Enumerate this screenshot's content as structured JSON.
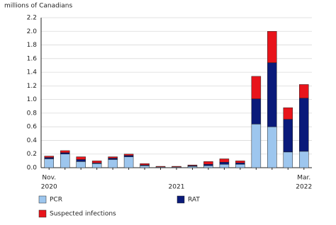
{
  "chart_data": {
    "type": "stacked_bar",
    "y_label": "millions of Canadians",
    "categories": [
      "Nov.",
      null,
      null,
      null,
      null,
      null,
      null,
      null,
      null,
      null,
      null,
      null,
      null,
      null,
      null,
      null,
      "Mar."
    ],
    "years": [
      "2020",
      null,
      null,
      null,
      null,
      null,
      null,
      null,
      "2021",
      null,
      null,
      null,
      null,
      null,
      null,
      null,
      "2022"
    ],
    "series": [
      {
        "name": "PCR",
        "color": "#9dc6ee",
        "values": [
          0.13,
          0.2,
          0.09,
          0.06,
          0.12,
          0.16,
          0.03,
          0.01,
          0.01,
          0.02,
          0.03,
          0.05,
          0.05,
          0.64,
          0.6,
          0.23,
          0.24
        ]
      },
      {
        "name": "RAT",
        "color": "#0a1a7a",
        "values": [
          0.02,
          0.02,
          0.03,
          0.01,
          0.02,
          0.02,
          0.01,
          0.0,
          0.0,
          0.01,
          0.02,
          0.03,
          0.02,
          0.37,
          0.94,
          0.48,
          0.78
        ]
      },
      {
        "name": "Suspected infections",
        "color": "#e8141b",
        "values": [
          0.02,
          0.03,
          0.04,
          0.03,
          0.02,
          0.02,
          0.02,
          0.01,
          0.01,
          0.01,
          0.04,
          0.05,
          0.03,
          0.33,
          0.46,
          0.17,
          0.2
        ]
      }
    ],
    "ylim": [
      0,
      2.2
    ],
    "yticks": [
      {
        "value": 0,
        "label": "0.0"
      },
      0.2,
      0.4,
      0.6,
      0.8,
      {
        "value": 1,
        "label": "1.0"
      },
      1.2,
      1.4,
      1.6,
      1.8,
      {
        "value": 2,
        "label": "2.0"
      },
      2.2
    ],
    "grid": true
  }
}
